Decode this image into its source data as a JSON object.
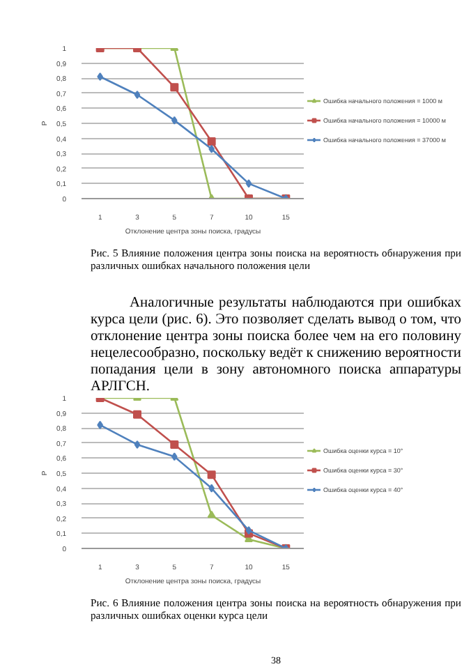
{
  "chart_data": [
    {
      "type": "line",
      "xlabel": "Отклонение центра зоны поиска, градусы",
      "ylabel": "P",
      "categories": [
        "1",
        "3",
        "5",
        "7",
        "10",
        "15"
      ],
      "ylim": [
        0,
        1
      ],
      "yticks": [
        0,
        {
          "value": 0.1,
          "label": "0,1"
        },
        {
          "value": 0.2,
          "label": "0,2"
        },
        {
          "value": 0.3,
          "label": "0,3"
        },
        {
          "value": 0.4,
          "label": "0,4"
        },
        {
          "value": 0.5,
          "label": "0,5"
        },
        {
          "value": 0.6,
          "label": "0,6"
        },
        {
          "value": 0.7,
          "label": "0,7"
        },
        {
          "value": 0.8,
          "label": "0,8"
        },
        {
          "value": 0.9,
          "label": "0,9"
        },
        1
      ],
      "grid": "y",
      "legend": "right",
      "series": [
        {
          "name": "Ошибка начального положения = 1000 м",
          "color": "#9bbb59",
          "marker": "triangle",
          "values": [
            1,
            1,
            1,
            0,
            0,
            0
          ]
        },
        {
          "name": "Ошибка начального положения = 10000 м",
          "color": "#c0504d",
          "marker": "square",
          "values": [
            1,
            1,
            0.74,
            0.38,
            0,
            0
          ]
        },
        {
          "name": "Ошибка начального положения = 37000 м",
          "color": "#4f81bd",
          "marker": "diamond",
          "values": [
            0.81,
            0.69,
            0.52,
            0.33,
            0.1,
            0
          ]
        }
      ],
      "annotations": [
        "Рис. 5 Влияние положения центра зоны поиска на вероятность обнаружения при различных ошибках начального положения цели",
        "Аналогичные результаты наблюдаются при ошибках курса цели (рис. 6). Это позволяет сделать вывод о том, что отклонение центра зоны поиска более чем на его половину нецелесообразно, поскольку ведёт к снижению вероятности попадания цели в зону автономного поиска аппаратуры АРЛГСН."
      ]
    },
    {
      "type": "line",
      "xlabel": "Отклонение центра зоны поиска, градусы",
      "ylabel": "P",
      "categories": [
        "1",
        "3",
        "5",
        "7",
        "10",
        "15"
      ],
      "ylim": [
        0,
        1
      ],
      "yticks": [
        0,
        {
          "value": 0.1,
          "label": "0,1"
        },
        {
          "value": 0.2,
          "label": "0,2"
        },
        {
          "value": 0.3,
          "label": "0,3"
        },
        {
          "value": 0.4,
          "label": "0,4"
        },
        {
          "value": 0.5,
          "label": "0,5"
        },
        {
          "value": 0.6,
          "label": "0,6"
        },
        {
          "value": 0.7,
          "label": "0,7"
        },
        {
          "value": 0.8,
          "label": "0,8"
        },
        {
          "value": 0.9,
          "label": "0,9"
        },
        1
      ],
      "grid": "y",
      "legend": "right",
      "series": [
        {
          "name": "Ошибка оценки курса = 10°",
          "color": "#9bbb59",
          "marker": "triangle",
          "values": [
            1,
            1,
            1,
            0.22,
            0.06,
            0
          ]
        },
        {
          "name": "Ошибка оценки курса = 30°",
          "color": "#c0504d",
          "marker": "square",
          "values": [
            1,
            0.89,
            0.69,
            0.49,
            0.1,
            0
          ]
        },
        {
          "name": "Ошибка оценки курса = 40°",
          "color": "#4f81bd",
          "marker": "diamond",
          "values": [
            0.82,
            0.69,
            0.61,
            0.4,
            0.12,
            0
          ]
        }
      ],
      "annotations": [
        "Рис. 6 Влияние положения центра зоны поиска на вероятность обнаружения при различных ошибках оценки курса цели",
        "38"
      ]
    }
  ]
}
